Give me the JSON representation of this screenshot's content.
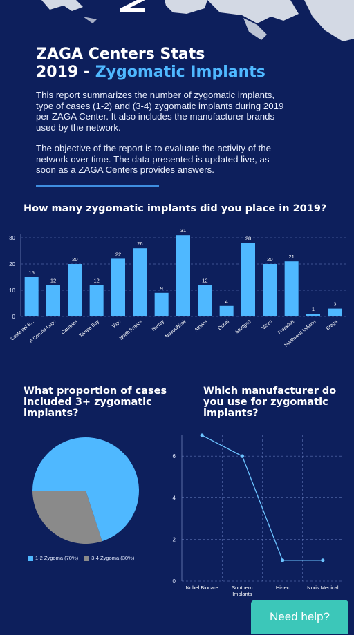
{
  "header": {
    "logo_letter": "Z",
    "title_line1": "ZAGA Centers Stats",
    "title_year": "2019 - ",
    "title_accent": "Zygomatic Implants"
  },
  "intro": {
    "paragraph1": "This report summarizes the number of zygomatic implants, type of cases (1-2) and (3-4) zygomatic implants during 2019 per ZAGA Center. It also includes the manufacturer brands used by the network.",
    "paragraph2": "The objective of the report is to evaluate the activity of the network over time. The data presented is updated live, as soon as a ZAGA Centers provides answers."
  },
  "questions": {
    "q1": "How many zygomatic implants did you place in 2019?",
    "q2": "What proportion of cases included 3+ zygomatic implants?",
    "q3": "Which manufacturer do you use for zygomatic implants?"
  },
  "colors": {
    "background": "#0d1f5c",
    "accent": "#4fb8ff",
    "bar": "#4fb8ff",
    "pie_gray": "#8a8a8a",
    "line": "#6cc3ff",
    "help_button": "#3cc7b9"
  },
  "help": {
    "label": "Need help?"
  },
  "chart_data": [
    {
      "type": "bar",
      "title": "How many zygomatic implants did you place in 2019?",
      "categories": [
        "Costa del S...",
        "A Coruña-Lugo",
        "Canarias",
        "Tampa Bay",
        "Vigo",
        "North France",
        "Surrey",
        "Novosibirsk",
        "Athens",
        "Dubai",
        "Stuttgart",
        "Viseu",
        "Frankfurt",
        "Northwest Indiana",
        "Braga"
      ],
      "values": [
        15,
        12,
        20,
        12,
        22,
        26,
        9,
        31,
        12,
        4,
        28,
        20,
        21,
        1,
        3
      ],
      "ylim": [
        0,
        30
      ],
      "yticks": [
        0,
        10,
        20,
        30
      ],
      "grid": true,
      "data_labels": true
    },
    {
      "type": "pie",
      "title": "What proportion of cases included 3+ zygomatic implants?",
      "slices": [
        {
          "label": "1-2 Zygoma (70%)",
          "value": 70,
          "color": "#4fb8ff"
        },
        {
          "label": "3-4 Zygoma (30%)",
          "value": 30,
          "color": "#8a8a8a"
        }
      ],
      "legend": "bottom"
    },
    {
      "type": "line",
      "title": "Which manufacturer do you use for zygomatic implants?",
      "categories": [
        "Nobel Biocare",
        "Southern Implants",
        "Hi-tec",
        "Noris Medical"
      ],
      "values": [
        7,
        6,
        1,
        1
      ],
      "ylim": [
        0,
        7
      ],
      "yticks": [
        0,
        2,
        4,
        6
      ],
      "grid": true
    }
  ]
}
